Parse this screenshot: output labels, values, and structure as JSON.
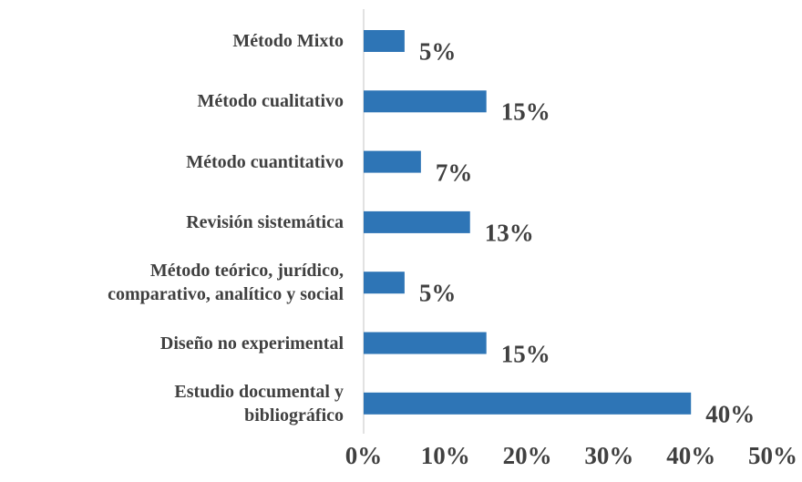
{
  "chart_data": {
    "type": "barh",
    "categories": [
      "Método Mixto",
      "Método cualitativo",
      "Método cuantitativo",
      "Revisión sistemática",
      "Método teórico, jurídico,\ncomparativo, analítico y social",
      "Diseño no experimental",
      "Estudio documental y\nbibliográfico"
    ],
    "values": [
      5,
      15,
      7,
      13,
      5,
      15,
      40
    ],
    "value_labels": [
      "5%",
      "15%",
      "7%",
      "13%",
      "5%",
      "15%",
      "40%"
    ],
    "color": "#2e75b6",
    "xlim": [
      0,
      50
    ],
    "xticks": [
      {
        "value": 0,
        "label": "0%"
      },
      {
        "value": 10,
        "label": "10%"
      },
      {
        "value": 20,
        "label": "20%"
      },
      {
        "value": 30,
        "label": "30%"
      },
      {
        "value": 40,
        "label": "40%"
      },
      {
        "value": 50,
        "label": "50%"
      }
    ]
  }
}
